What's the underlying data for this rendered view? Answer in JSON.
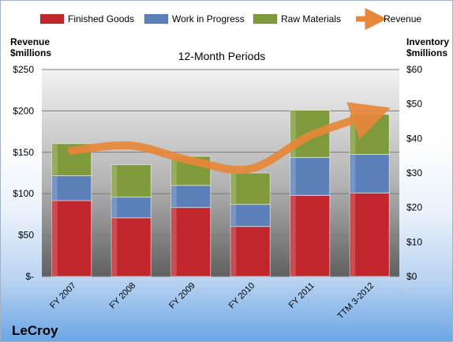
{
  "chart_data": {
    "type": "bar",
    "stacked": true,
    "title": "12-Month Periods",
    "y_left_label": [
      "Revenue",
      "$millions"
    ],
    "y_right_label": [
      "Inventory",
      "$millions"
    ],
    "categories": [
      "FY 2007",
      "FY 2008",
      "FY 2009",
      "FY 2010",
      "FY 2011",
      "TTM 3-2012"
    ],
    "y_left_ticks": [
      "$-",
      "$50",
      "$100",
      "$150",
      "$200",
      "$250"
    ],
    "y_right_ticks": [
      "$0",
      "$10",
      "$20",
      "$30",
      "$40",
      "$50",
      "$60"
    ],
    "y_left_range": [
      0,
      250
    ],
    "y_right_range": [
      0,
      60
    ],
    "series": [
      {
        "name": "Finished Goods",
        "axis": "right",
        "color": "#c0262b",
        "values": [
          22,
          17,
          20,
          14.5,
          23.5,
          24.2
        ]
      },
      {
        "name": "Work in Progress",
        "axis": "right",
        "color": "#5b7fb8",
        "values": [
          7.2,
          6,
          6.4,
          6.4,
          11,
          11.2
        ]
      },
      {
        "name": "Raw Materials",
        "axis": "right",
        "color": "#7f9a3c",
        "values": [
          9.3,
          9.4,
          8.4,
          9.1,
          13.7,
          11.6
        ]
      },
      {
        "name": "Revenue",
        "type": "line",
        "axis": "left",
        "color": "#e8873a",
        "values": [
          152,
          158,
          140,
          130,
          170,
          195
        ]
      }
    ],
    "legend_position": "top",
    "grid": true,
    "company": "LeCroy"
  }
}
